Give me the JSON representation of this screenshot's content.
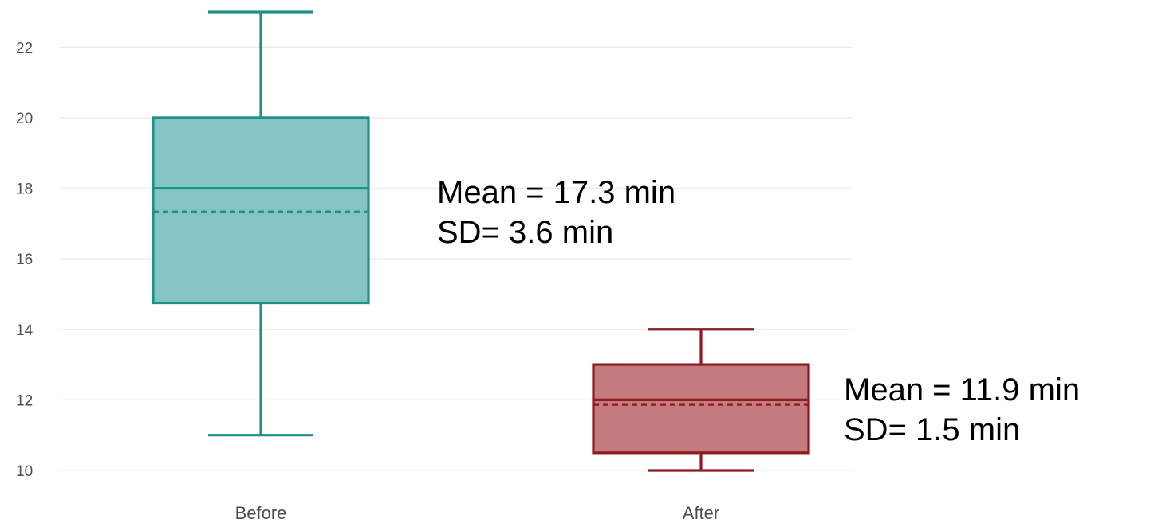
{
  "chart_data": {
    "type": "boxplot",
    "title": "",
    "xlabel": "",
    "ylabel": "",
    "ylim": [
      9.6,
      23.3
    ],
    "yticks": [
      10,
      12,
      14,
      16,
      18,
      20,
      22
    ],
    "grid": true,
    "categories": [
      "Before",
      "After"
    ],
    "boxes": [
      {
        "category": "Before",
        "min": 11,
        "q1": 14.75,
        "median": 18,
        "mean": 17.33,
        "q3": 20,
        "max": 23,
        "color": "#1f8f8c",
        "fill": "#84c5c3"
      },
      {
        "category": "After",
        "min": 10,
        "q1": 10.5,
        "median": 12,
        "mean": 11.87,
        "q3": 13,
        "max": 14,
        "color": "#8e1b1f",
        "fill": "#c47b7d"
      }
    ],
    "annotations": [
      {
        "group": "Before",
        "lines": [
          "Mean = 17.3 min",
          "SD= 3.6 min"
        ]
      },
      {
        "group": "After",
        "lines": [
          "Mean = 11.9 min",
          "SD= 1.5 min"
        ]
      }
    ]
  }
}
